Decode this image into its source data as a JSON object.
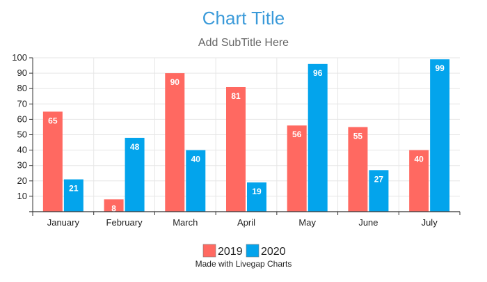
{
  "chart_data": {
    "type": "bar",
    "title": "Chart Title",
    "subtitle": "Add SubTitle Here",
    "categories": [
      "January",
      "February",
      "March",
      "April",
      "May",
      "June",
      "July"
    ],
    "series": [
      {
        "name": "2019",
        "values": [
          65,
          8,
          90,
          81,
          56,
          55,
          40
        ],
        "color": "#ff6961"
      },
      {
        "name": "2020",
        "values": [
          21,
          48,
          40,
          19,
          96,
          27,
          99
        ],
        "color": "#03a4ec"
      }
    ],
    "y_ticks": [
      10,
      20,
      30,
      40,
      50,
      60,
      70,
      80,
      90,
      100
    ],
    "ylim": [
      0,
      100
    ],
    "grid": true,
    "legend_position": "bottom",
    "data_labels": true
  },
  "colors": {
    "title": "#3a9ad9",
    "subtitle": "#666666",
    "axis": "#333333",
    "grid": "#e6e6e6"
  },
  "credit": "Made with Livegap Charts"
}
